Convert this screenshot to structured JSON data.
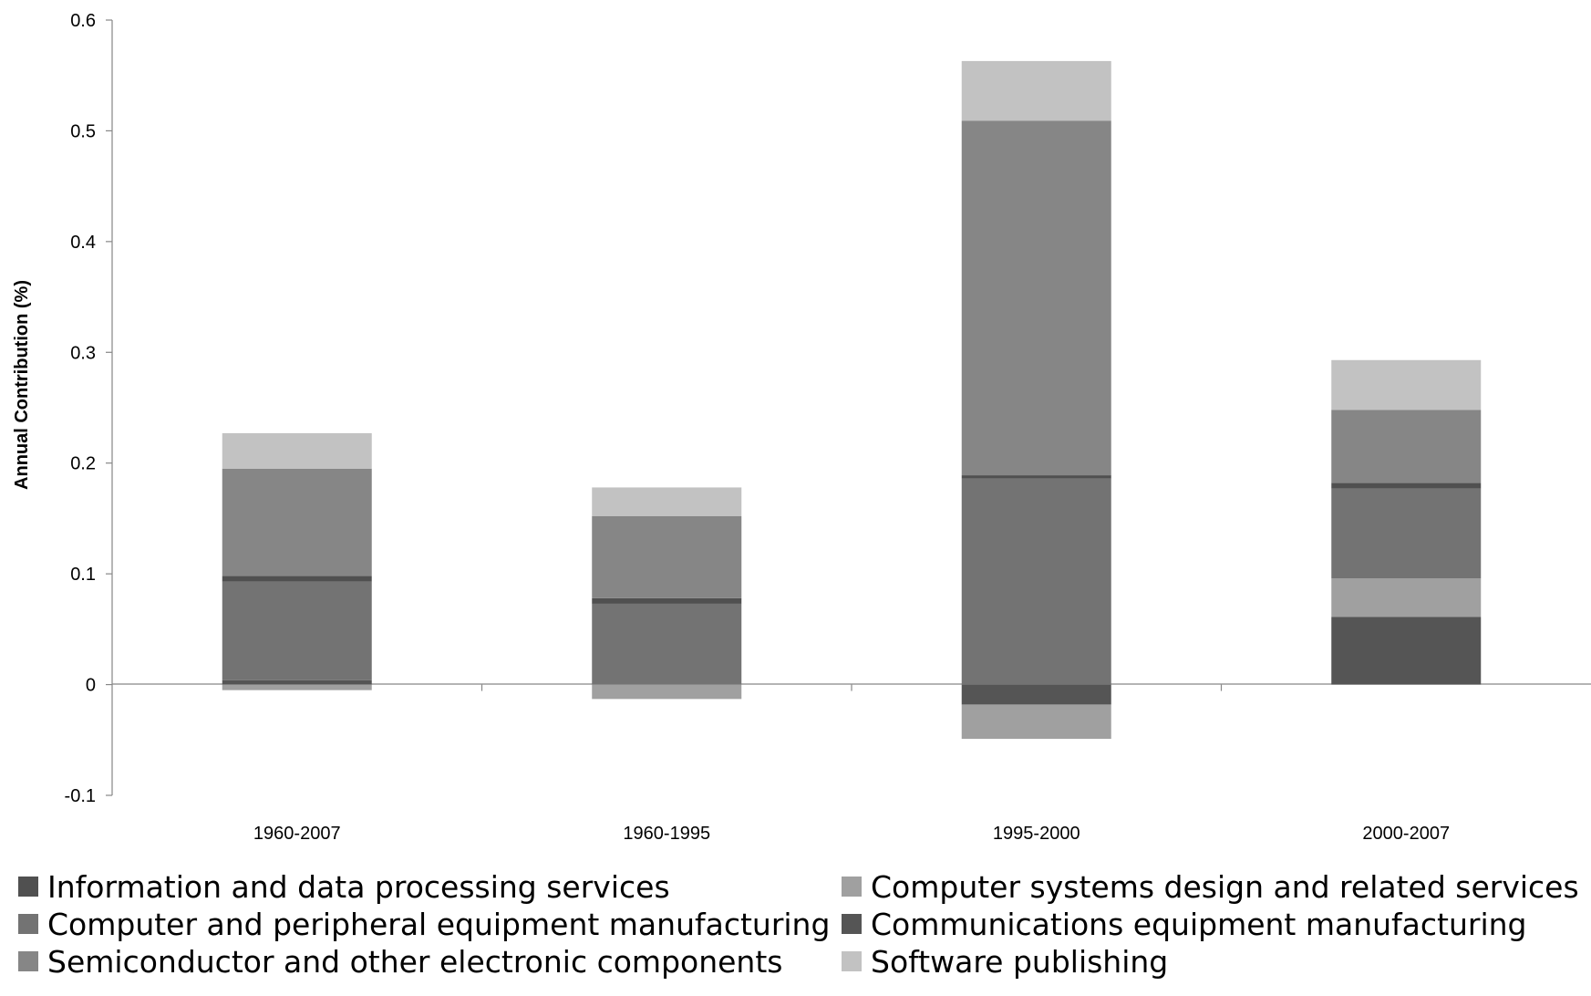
{
  "chart_data": {
    "type": "bar",
    "stacked": true,
    "title": "",
    "xlabel": "",
    "ylabel": "Annual Contribution (%)",
    "ylim": [
      -0.1,
      0.6
    ],
    "yticks": [
      "0.6",
      "0.5",
      "0.4",
      "0.3",
      "0.2",
      "0.1",
      "0",
      "-0.1"
    ],
    "categories": [
      "1960-2007",
      "1960-1995",
      "1995-2000",
      "2000-2007"
    ],
    "grid": false,
    "legend_position": "bottom",
    "series": [
      {
        "name": "Communications equipment manufacturing",
        "color": "#555555",
        "values": [
          0.004,
          0.0,
          -0.018,
          0.061
        ]
      },
      {
        "name": "Computer systems design and related services",
        "color": "#a0a0a0",
        "values": [
          -0.005,
          -0.013,
          -0.031,
          0.035
        ]
      },
      {
        "name": "Computer and peripheral equipment manufacturing",
        "color": "#737373",
        "values": [
          0.089,
          0.073,
          0.186,
          0.081
        ]
      },
      {
        "name": "Information and data processing services",
        "color": "#505050",
        "values": [
          0.005,
          0.005,
          0.003,
          0.005
        ]
      },
      {
        "name": "Semiconductor and other electronic components",
        "color": "#868686",
        "values": [
          0.097,
          0.074,
          0.32,
          0.066
        ]
      },
      {
        "name": "Software publishing",
        "color": "#c2c2c2",
        "values": [
          0.032,
          0.026,
          0.054,
          0.045
        ]
      }
    ]
  },
  "legend": {
    "items": [
      {
        "label": "Information and data processing services",
        "color": "#505050"
      },
      {
        "label": "Computer systems design and related services",
        "color": "#a0a0a0"
      },
      {
        "label": "Computer and peripheral equipment manufacturing",
        "color": "#737373"
      },
      {
        "label": "Communications equipment manufacturing",
        "color": "#555555"
      },
      {
        "label": "Semiconductor and other electronic components",
        "color": "#868686"
      },
      {
        "label": "Software publishing",
        "color": "#c2c2c2"
      }
    ]
  }
}
